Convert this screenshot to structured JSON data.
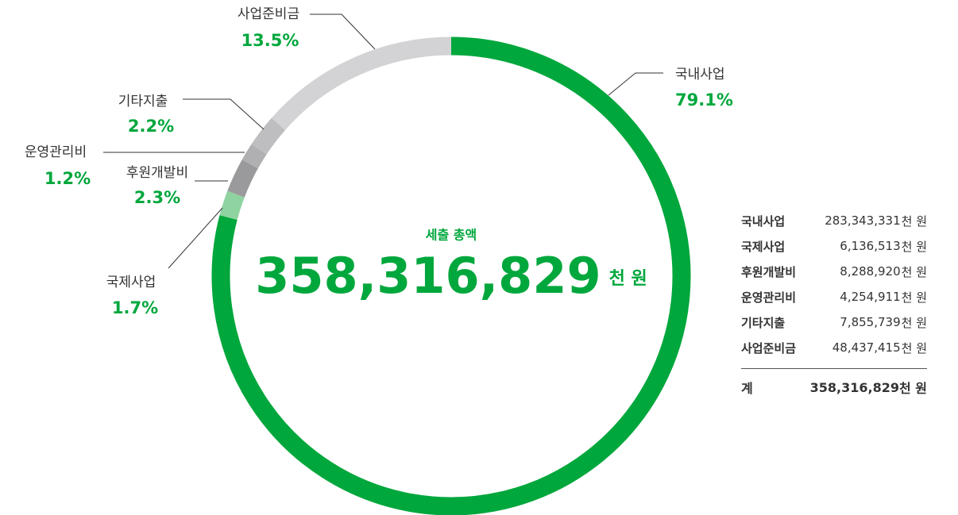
{
  "chart_data": {
    "type": "pie",
    "donut": true,
    "categories": [
      "국내사업",
      "국제사업",
      "후원개발비",
      "운영관리비",
      "기타지출",
      "사업준비금"
    ],
    "values": [
      79.1,
      1.7,
      2.3,
      1.2,
      2.2,
      13.5
    ],
    "value_labels": [
      "79.1%",
      "1.7%",
      "2.3%",
      "1.2%",
      "2.2%",
      "13.5%"
    ],
    "colors": [
      "#00a73c",
      "#8fd3a0",
      "#9a9a9c",
      "#b0b0b2",
      "#bebec0",
      "#d3d3d5"
    ]
  },
  "center": {
    "title": "세출 총액",
    "amount": "358,316,829",
    "unit": "천 원"
  },
  "table": {
    "unit": "천 원",
    "rows": [
      [
        "국내사업",
        "283,343,331"
      ],
      [
        "국제사업",
        "6,136,513"
      ],
      [
        "후원개발비",
        "8,288,920"
      ],
      [
        "운영관리비",
        "4,254,911"
      ],
      [
        "기타지출",
        "7,855,739"
      ],
      [
        "사업준비금",
        "48,437,415"
      ]
    ],
    "total": [
      "계",
      "358,316,829"
    ]
  }
}
